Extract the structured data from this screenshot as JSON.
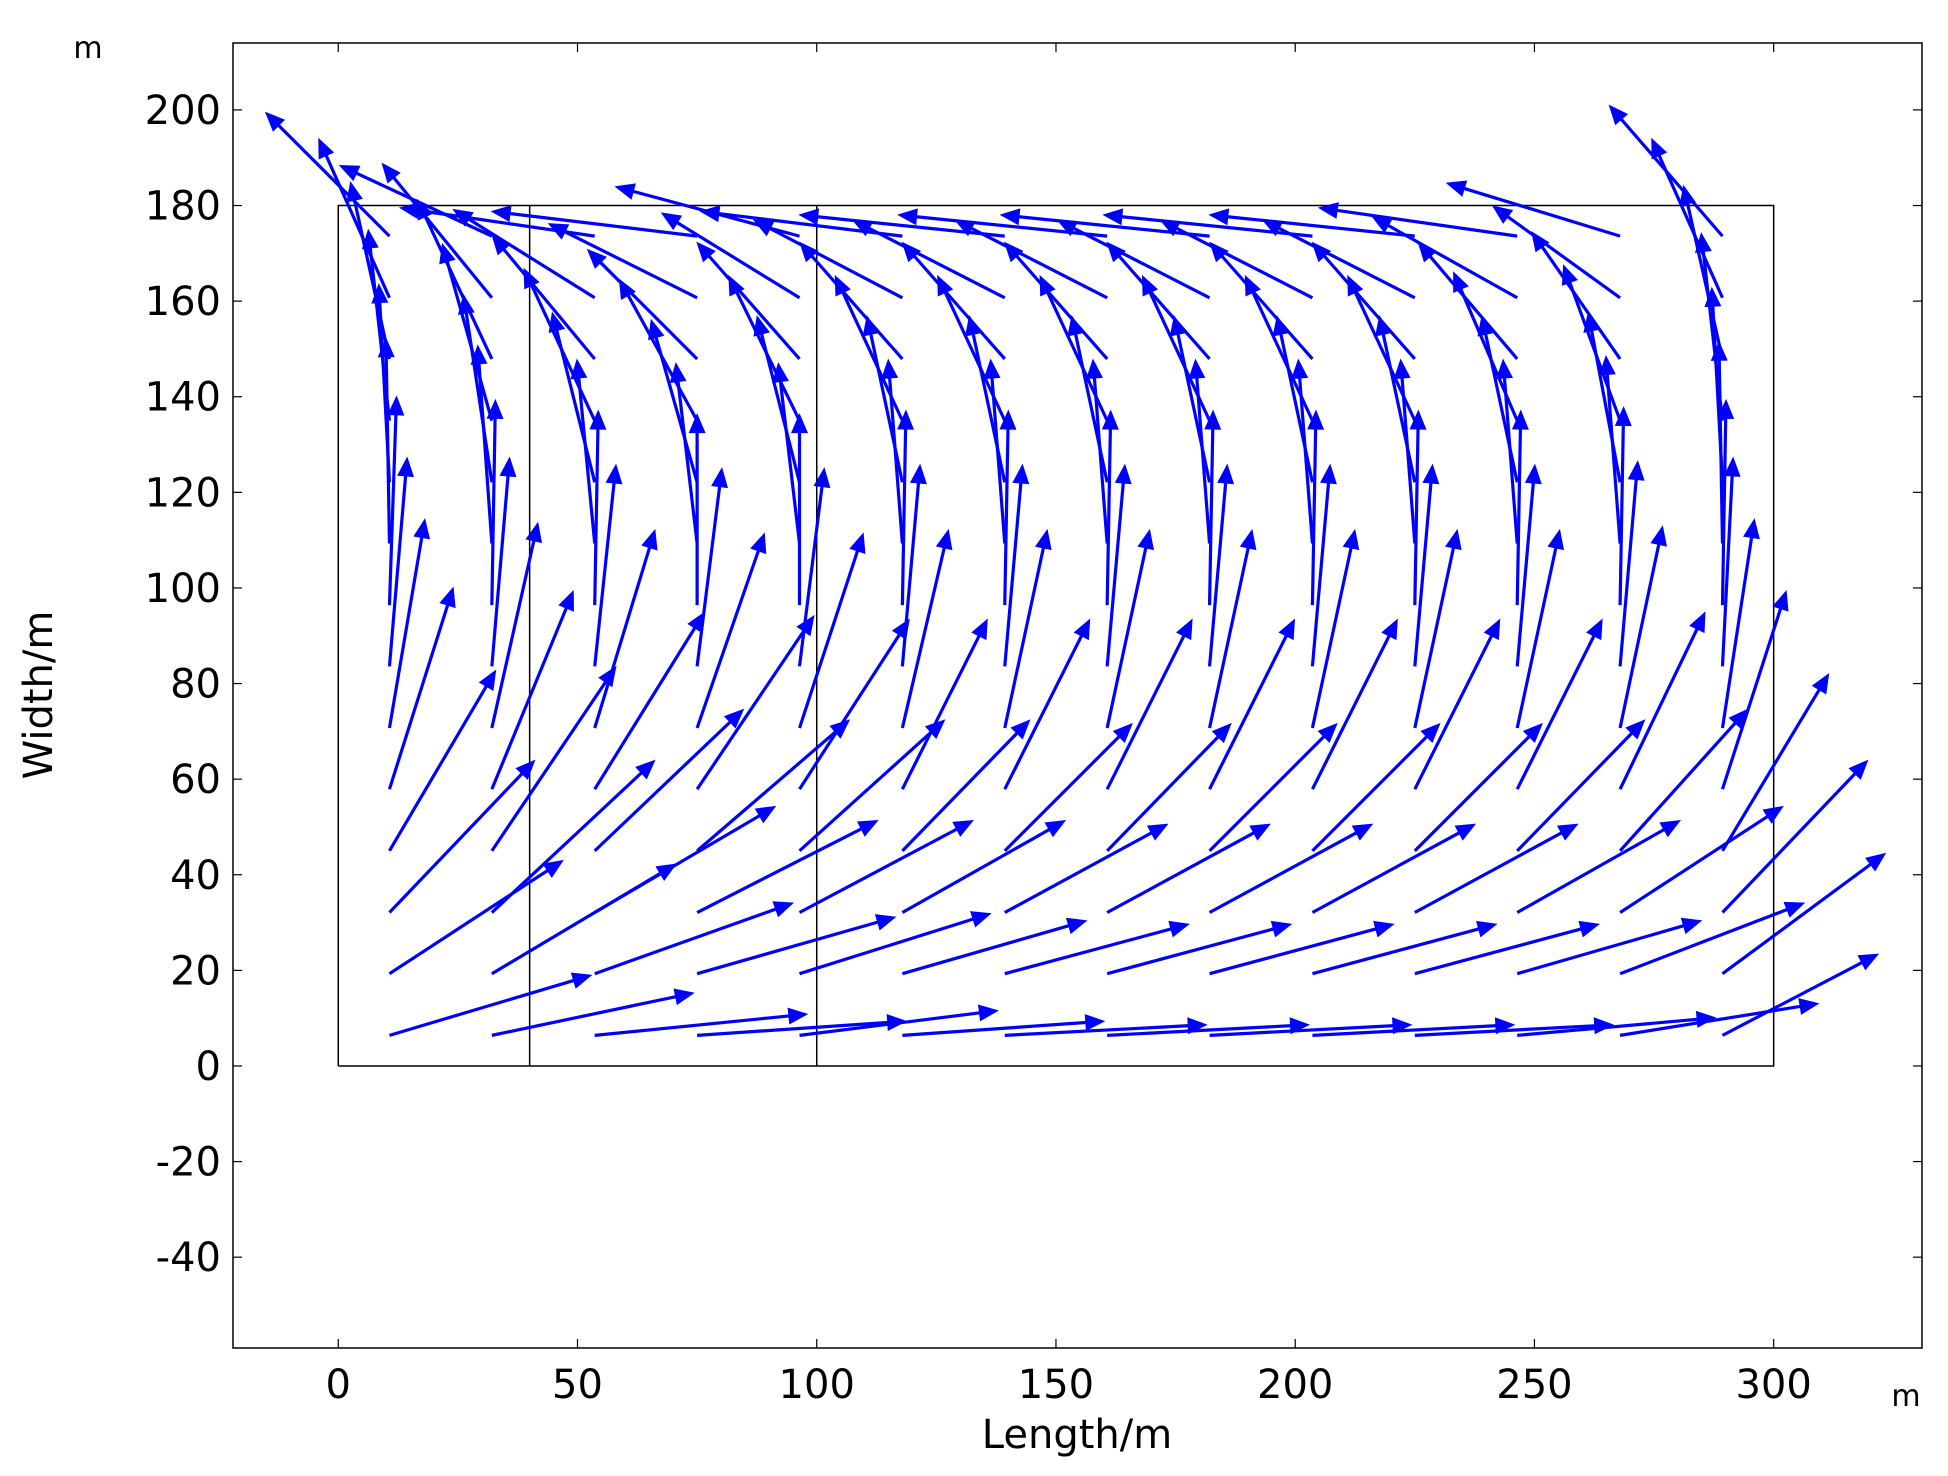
{
  "chart_data": {
    "type": "quiver",
    "xlabel": "Length/m",
    "ylabel": "Width/m",
    "x_unit": "m",
    "y_unit": "m",
    "xlim": [
      -22,
      331
    ],
    "ylim": [
      -59,
      214
    ],
    "x_ticks": [
      0,
      50,
      100,
      150,
      200,
      250,
      300
    ],
    "y_ticks": [
      -40,
      -20,
      0,
      20,
      40,
      60,
      80,
      100,
      120,
      140,
      160,
      180,
      200
    ],
    "grid": false,
    "arrow_color": "#0000ff",
    "geometry_lines": [
      {
        "x": [
          0,
          300,
          300,
          0,
          0
        ],
        "y": [
          0,
          0,
          180,
          180,
          0
        ]
      },
      {
        "x": [
          40,
          40
        ],
        "y": [
          0,
          180
        ]
      },
      {
        "x": [
          100,
          100
        ],
        "y": [
          0,
          180
        ]
      }
    ],
    "arrow_columns_x": [
      10.7,
      32.1,
      53.6,
      75,
      96.4,
      117.9,
      139.3,
      160.7,
      182.1,
      203.6,
      225,
      246.4,
      267.9,
      289.3
    ],
    "arrow_rows_y": [
      6.4,
      19.3,
      32.1,
      45,
      57.9,
      70.7,
      83.6,
      96.4,
      109.3,
      122.1,
      135,
      147.9,
      160.7,
      173.6
    ],
    "vectors": {
      "u": [
        [
          5.7,
          5.7,
          6.0,
          5.9,
          5.6,
          5.7,
          5.7,
          5.7,
          5.7,
          5.7,
          5.6,
          5.6,
          5.6,
          4.4
        ],
        [
          4.9,
          5.2,
          5.6,
          5.6,
          5.4,
          5.2,
          5.2,
          5.2,
          5.2,
          5.2,
          5.2,
          5.2,
          5.2,
          4.6
        ],
        [
          4.1,
          4.6,
          5.1,
          5.1,
          4.9,
          4.6,
          4.6,
          4.6,
          4.6,
          4.6,
          4.6,
          4.6,
          4.6,
          4.1
        ],
        [
          3.0,
          3.5,
          4.2,
          4.3,
          4.1,
          3.6,
          3.6,
          3.5,
          3.6,
          3.6,
          3.6,
          3.6,
          3.6,
          3.0
        ],
        [
          1.8,
          2.3,
          3.1,
          3.3,
          3.1,
          2.4,
          2.4,
          2.4,
          2.4,
          2.4,
          2.4,
          2.4,
          2.4,
          1.8
        ],
        [
          1.0,
          1.3,
          1.7,
          1.9,
          1.8,
          1.3,
          1.2,
          1.2,
          1.2,
          1.2,
          1.2,
          1.2,
          1.2,
          0.9
        ],
        [
          0.5,
          0.5,
          0.6,
          0.7,
          0.7,
          0.5,
          0.5,
          0.5,
          0.5,
          0.5,
          0.5,
          0.5,
          0.5,
          0.3
        ],
        [
          0.2,
          0.1,
          0.1,
          0.0,
          0.0,
          0.1,
          0.1,
          0.1,
          0.1,
          0.1,
          0.1,
          0.1,
          0.1,
          0.1
        ],
        [
          -0.1,
          -0.4,
          -0.5,
          -0.6,
          -0.6,
          -0.4,
          -0.4,
          -0.4,
          -0.4,
          -0.4,
          -0.4,
          -0.4,
          -0.4,
          -0.1
        ],
        [
          -0.3,
          -0.8,
          -1.2,
          -1.3,
          -1.2,
          -1.0,
          -1.0,
          -1.0,
          -1.0,
          -1.0,
          -1.0,
          -1.0,
          -0.9,
          -0.3
        ],
        [
          -0.6,
          -1.4,
          -2.0,
          -2.2,
          -2.0,
          -1.9,
          -1.9,
          -1.9,
          -1.9,
          -1.9,
          -1.9,
          -1.8,
          -1.6,
          -0.6
        ],
        [
          -1.1,
          -2.1,
          -2.9,
          -3.1,
          -2.9,
          -2.9,
          -2.9,
          -2.9,
          -2.9,
          -2.9,
          -2.9,
          -2.8,
          -2.5,
          -1.1
        ],
        [
          -2.0,
          -3.1,
          -4.0,
          -4.2,
          -3.9,
          -4.2,
          -4.3,
          -4.3,
          -4.3,
          -4.3,
          -4.3,
          -4.1,
          -3.6,
          -2.0
        ],
        [
          -3.5,
          -4.3,
          -5.5,
          -5.8,
          -5.2,
          -5.7,
          -5.8,
          -5.9,
          -5.9,
          -5.9,
          -5.8,
          -5.6,
          -4.9,
          -3.2
        ]
      ],
      "v": [
        [
          1.7,
          1.2,
          0.6,
          0.4,
          0.7,
          0.4,
          0.3,
          0.3,
          0.3,
          0.3,
          0.3,
          0.5,
          0.9,
          2.3
        ],
        [
          3.2,
          3.1,
          2.0,
          1.6,
          1.7,
          1.5,
          1.4,
          1.4,
          1.4,
          1.4,
          1.4,
          1.5,
          2.0,
          3.4
        ],
        [
          4.3,
          4.3,
          3.0,
          2.6,
          2.6,
          2.6,
          2.5,
          2.5,
          2.5,
          2.5,
          2.5,
          2.6,
          3.0,
          4.3
        ],
        [
          5.1,
          5.2,
          4.0,
          3.7,
          3.7,
          3.7,
          3.6,
          3.6,
          3.6,
          3.6,
          3.6,
          3.7,
          4.0,
          5.0
        ],
        [
          5.7,
          5.6,
          5.0,
          4.9,
          4.8,
          4.8,
          4.8,
          4.8,
          4.8,
          4.8,
          4.8,
          4.8,
          5.0,
          5.6
        ],
        [
          5.9,
          5.8,
          5.6,
          5.5,
          5.5,
          5.6,
          5.6,
          5.6,
          5.6,
          5.6,
          5.6,
          5.6,
          5.7,
          5.9
        ],
        [
          5.9,
          5.9,
          5.7,
          5.6,
          5.6,
          5.7,
          5.7,
          5.7,
          5.7,
          5.7,
          5.7,
          5.7,
          5.8,
          5.9
        ],
        [
          5.9,
          5.8,
          5.5,
          5.4,
          5.4,
          5.5,
          5.5,
          5.5,
          5.5,
          5.5,
          5.5,
          5.5,
          5.6,
          5.8
        ],
        [
          5.8,
          5.6,
          5.2,
          5.1,
          5.1,
          5.2,
          5.2,
          5.2,
          5.2,
          5.2,
          5.2,
          5.2,
          5.3,
          5.7
        ],
        [
          5.6,
          5.3,
          4.8,
          4.6,
          4.7,
          4.7,
          4.7,
          4.7,
          4.7,
          4.7,
          4.7,
          4.7,
          4.8,
          5.5
        ],
        [
          5.4,
          5.0,
          4.3,
          4.0,
          4.1,
          4.1,
          4.1,
          4.1,
          4.1,
          4.1,
          4.1,
          4.2,
          4.4,
          5.3
        ],
        [
          5.0,
          4.5,
          3.5,
          3.1,
          3.3,
          3.3,
          3.3,
          3.3,
          3.3,
          3.3,
          3.3,
          3.3,
          3.6,
          4.9
        ],
        [
          4.5,
          3.8,
          2.5,
          2.1,
          2.4,
          2.2,
          2.2,
          2.2,
          2.2,
          2.2,
          2.2,
          2.3,
          2.6,
          4.5
        ],
        [
          3.5,
          2.0,
          0.8,
          0.7,
          1.4,
          0.7,
          0.6,
          0.6,
          0.6,
          0.6,
          0.6,
          0.8,
          1.5,
          3.7
        ]
      ]
    }
  }
}
